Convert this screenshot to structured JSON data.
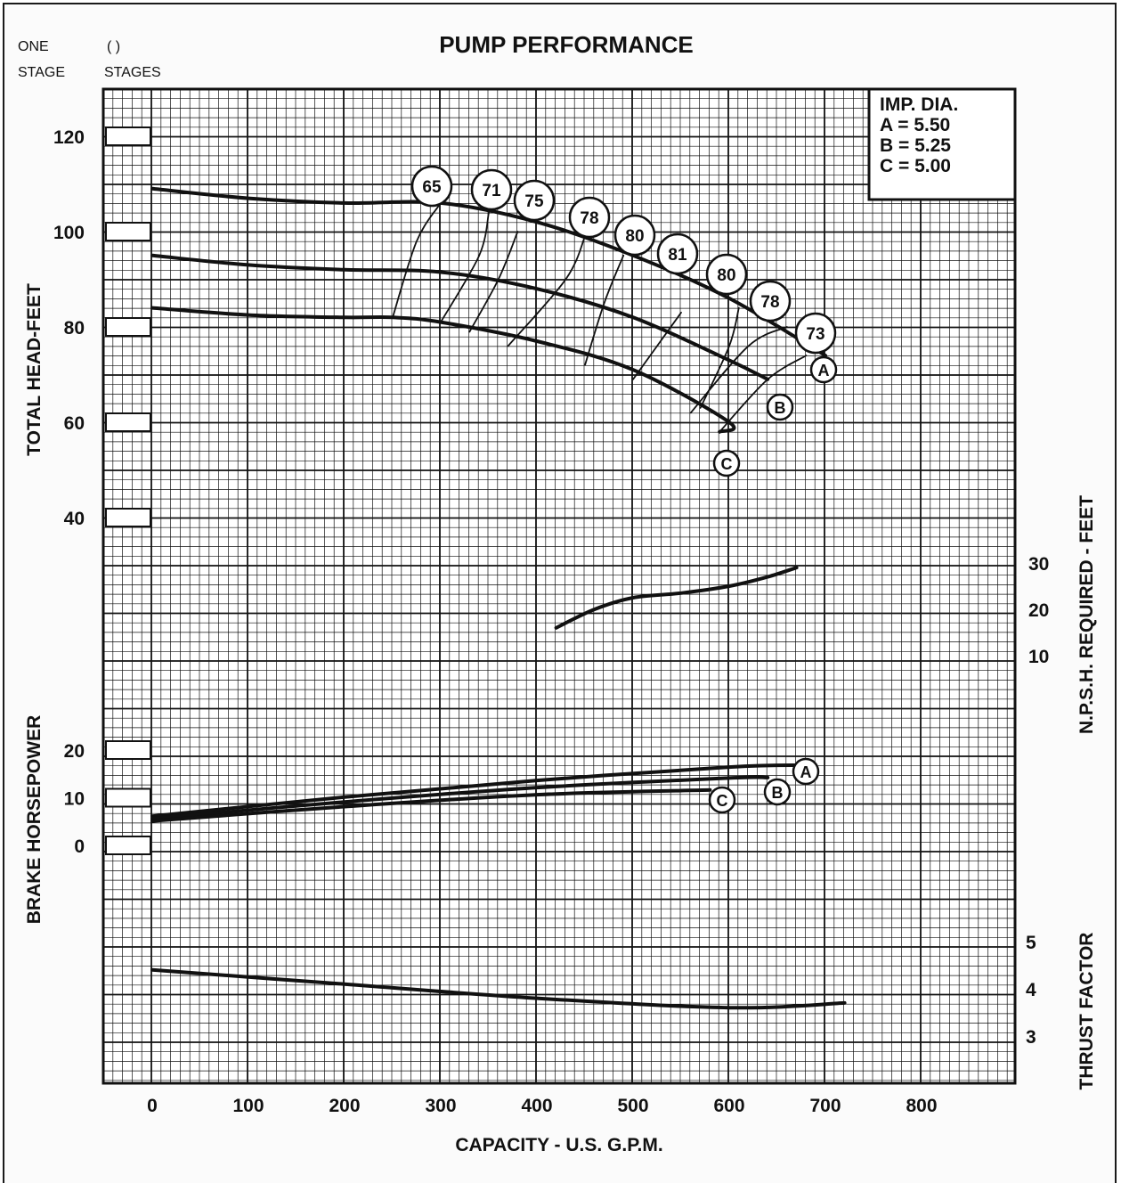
{
  "header": {
    "stage_one_line1": "ONE",
    "stage_one_line2": "STAGE",
    "stages_line1": "( )",
    "stages_line2": "STAGES"
  },
  "chart_data": {
    "type": "line",
    "title": "PUMP PERFORMANCE",
    "xlabel": "CAPACITY - U.S. G.P.M.",
    "xlim": [
      -50,
      900
    ],
    "x_ticks": [
      "0",
      "100",
      "200",
      "300",
      "400",
      "500",
      "600",
      "700",
      "800"
    ],
    "head": {
      "ylabel": "TOTAL HEAD-FEET",
      "y_ticks": [
        "120",
        "100",
        "80",
        "60",
        "40"
      ],
      "series": [
        {
          "name": "A",
          "points": [
            [
              0,
              109
            ],
            [
              100,
              107
            ],
            [
              200,
              106
            ],
            [
              300,
              106
            ],
            [
              400,
              102
            ],
            [
              500,
              95
            ],
            [
              600,
              86
            ],
            [
              700,
              74
            ]
          ]
        },
        {
          "name": "B",
          "points": [
            [
              0,
              95
            ],
            [
              100,
              93
            ],
            [
              200,
              92
            ],
            [
              300,
              91.5
            ],
            [
              400,
              88
            ],
            [
              500,
              82
            ],
            [
              600,
              73
            ],
            [
              640,
              69
            ]
          ]
        },
        {
          "name": "C",
          "points": [
            [
              0,
              84
            ],
            [
              100,
              82.5
            ],
            [
              200,
              82
            ],
            [
              250,
              82
            ],
            [
              300,
              81
            ],
            [
              400,
              77
            ],
            [
              500,
              71
            ],
            [
              600,
              60
            ],
            [
              590,
              58
            ]
          ]
        }
      ],
      "curve_labels": [
        "A",
        "B",
        "C"
      ],
      "efficiency_labels": [
        "65",
        "71",
        "75",
        "78",
        "80",
        "81",
        "80",
        "78",
        "73"
      ],
      "efficiency_lines": [
        {
          "label": "65",
          "points": [
            [
              250,
              82
            ],
            [
              275,
              98
            ],
            [
              300,
              106
            ]
          ]
        },
        {
          "label": "71",
          "points": [
            [
              300,
              81
            ],
            [
              340,
              95
            ],
            [
              350,
              104
            ]
          ]
        },
        {
          "label": "75",
          "points": [
            [
              330,
              79
            ],
            [
              360,
              90
            ],
            [
              380,
              100
            ]
          ]
        },
        {
          "label": "78",
          "points": [
            [
              370,
              76
            ],
            [
              430,
              90
            ],
            [
              450,
              99
            ]
          ]
        },
        {
          "label": "80",
          "points": [
            [
              450,
              72
            ],
            [
              470,
              85
            ],
            [
              490,
              95
            ]
          ]
        },
        {
          "label": "81",
          "points": [
            [
              500,
              69
            ],
            [
              550,
              83
            ]
          ]
        },
        {
          "label": "80",
          "points": [
            [
              570,
              63
            ],
            [
              600,
              76
            ],
            [
              610,
              84
            ]
          ]
        },
        {
          "label": "78",
          "points": [
            [
              560,
              62
            ],
            [
              620,
              76
            ],
            [
              660,
              80
            ]
          ]
        },
        {
          "label": "73",
          "points": [
            [
              590,
              58
            ],
            [
              640,
              69
            ],
            [
              680,
              74
            ]
          ]
        }
      ]
    },
    "legend": {
      "title": "IMP. DIA.",
      "entries": [
        "A = 5.50",
        "B = 5.25",
        "C = 5.00"
      ],
      "placement": "top-right"
    },
    "npsh": {
      "ylabel": "N.P.S.H. REQUIRED - FEET",
      "y_ticks": [
        "30",
        "20",
        "10"
      ],
      "points": [
        [
          420,
          16
        ],
        [
          460,
          20
        ],
        [
          500,
          22.5
        ],
        [
          550,
          23.5
        ],
        [
          600,
          25
        ],
        [
          640,
          27
        ],
        [
          670,
          29
        ]
      ]
    },
    "bhp": {
      "ylabel": "BRAKE HORSEPOWER",
      "y_ticks": [
        "20",
        "10",
        "0"
      ],
      "series": [
        {
          "name": "A",
          "points": [
            [
              0,
              6.5
            ],
            [
              200,
              10.5
            ],
            [
              400,
              14
            ],
            [
              600,
              16.8
            ],
            [
              680,
              17.2
            ]
          ]
        },
        {
          "name": "B",
          "points": [
            [
              0,
              6
            ],
            [
              200,
              9.5
            ],
            [
              400,
              12.5
            ],
            [
              600,
              14.5
            ],
            [
              640,
              14.6
            ]
          ]
        },
        {
          "name": "C",
          "points": [
            [
              0,
              5.5
            ],
            [
              200,
              8.5
            ],
            [
              400,
              11
            ],
            [
              580,
              12
            ]
          ]
        }
      ],
      "curve_labels": [
        "A",
        "B",
        "C"
      ]
    },
    "thrust": {
      "ylabel": "THRUST FACTOR",
      "y_ticks": [
        "5",
        "4",
        "3"
      ],
      "points": [
        [
          0,
          4.4
        ],
        [
          200,
          4.1
        ],
        [
          400,
          3.8
        ],
        [
          600,
          3.6
        ],
        [
          720,
          3.7
        ]
      ]
    },
    "grid": true
  }
}
